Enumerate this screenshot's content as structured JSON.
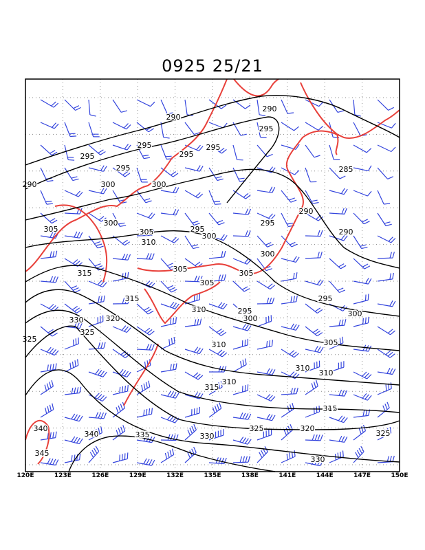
{
  "title": "0925 25/21",
  "map": {
    "lon_labels": [
      "120E",
      "123E",
      "126E",
      "129E",
      "132E",
      "135E",
      "138E",
      "141E",
      "144E",
      "147E",
      "150E"
    ],
    "contour_labels": [
      "290",
      "290",
      "295",
      "295",
      "295",
      "295",
      "295",
      "295",
      "285",
      "300",
      "300",
      "290",
      "290",
      "305",
      "300",
      "295",
      "305",
      "300",
      "295",
      "290",
      "310",
      "300",
      "305",
      "305",
      "305",
      "315",
      "315",
      "310",
      "295",
      "295",
      "300",
      "300",
      "330",
      "320",
      "325",
      "325",
      "305",
      "310",
      "310",
      "310",
      "310",
      "315",
      "315",
      "340",
      "340",
      "335",
      "330",
      "325",
      "320",
      "325",
      "330",
      "345"
    ]
  }
}
